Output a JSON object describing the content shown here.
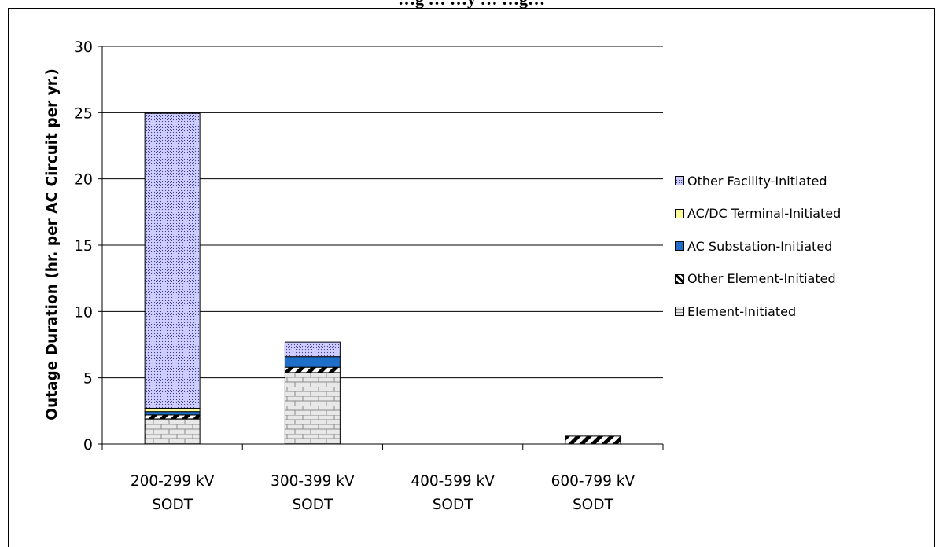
{
  "chart_data": {
    "type": "bar",
    "stacked": true,
    "title": "…g … …y … …g…",
    "ylabel": "Outage Duration (hr. per AC Circuit per yr.)",
    "xlabel": "",
    "ylim": [
      0,
      30
    ],
    "yticks": [
      0,
      5,
      10,
      15,
      20,
      25,
      30
    ],
    "grid": true,
    "legend_position": "right",
    "categories": [
      "200-299 kV SODT",
      "300-399 kV SODT",
      "400-599 kV SODT",
      "600-799 kV SODT"
    ],
    "category_lines": [
      [
        "200-299 kV",
        "SODT"
      ],
      [
        "300-399 kV",
        "SODT"
      ],
      [
        "400-599 kV",
        "SODT"
      ],
      [
        "600-799 kV",
        "SODT"
      ]
    ],
    "series": [
      {
        "name": "Element-Initiated",
        "values": [
          1.9,
          5.4,
          0,
          0.0
        ],
        "color": "#d9d9d9",
        "pattern": "brick"
      },
      {
        "name": "Other Element-Initiated",
        "values": [
          0.3,
          0.4,
          0,
          0.6
        ],
        "color": "#000000",
        "pattern": "diagonal"
      },
      {
        "name": "AC Substation-Initiated",
        "values": [
          0.25,
          0.8,
          0,
          0
        ],
        "color": "#1f6fc9",
        "pattern": "solid"
      },
      {
        "name": "AC/DC Terminal-Initiated",
        "values": [
          0.25,
          0.0,
          0,
          0
        ],
        "color": "#ffff99",
        "pattern": "solid"
      },
      {
        "name": "Other Facility-Initiated",
        "values": [
          22.25,
          1.1,
          0,
          0
        ],
        "color": "#ccccff",
        "pattern": "dots"
      }
    ],
    "legend_order": [
      "Other Facility-Initiated",
      "AC/DC Terminal-Initiated",
      "AC Substation-Initiated",
      "Other Element-Initiated",
      "Element-Initiated"
    ]
  }
}
